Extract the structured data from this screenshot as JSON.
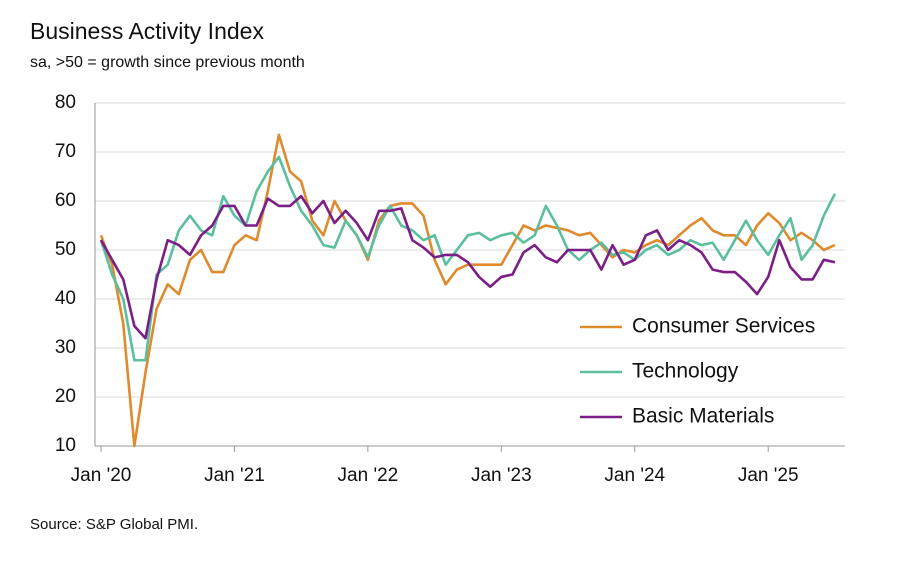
{
  "chart_data": {
    "type": "line",
    "title": "Business Activity Index",
    "subtitle": "sa, >50 = growth since previous month",
    "source": "Source: S&P Global PMI.",
    "categories": [
      "Jan '20",
      null,
      null,
      null,
      null,
      null,
      null,
      null,
      null,
      null,
      null,
      null,
      "Jan '21",
      null,
      null,
      null,
      null,
      null,
      null,
      null,
      null,
      null,
      null,
      null,
      "Jan '22",
      null,
      null,
      null,
      null,
      null,
      null,
      null,
      null,
      null,
      null,
      null,
      "Jan '23",
      null,
      null,
      null,
      null,
      null,
      null,
      null,
      null,
      null,
      null,
      null,
      "Jan '24",
      null,
      null,
      null,
      null,
      null,
      null,
      null,
      null,
      null,
      null,
      null,
      "Jan '25",
      null,
      null,
      null,
      null,
      null,
      null
    ],
    "ylim": [
      10,
      80
    ],
    "yticks": [
      10,
      20,
      30,
      40,
      50,
      60,
      70,
      80
    ],
    "grid": true,
    "legend": "lower right",
    "series": [
      {
        "name": "Consumer Services",
        "color": "#e08a2e",
        "values": [
          53,
          47,
          35,
          10,
          25,
          38,
          43,
          41,
          48,
          50,
          45.5,
          45.5,
          51,
          53,
          52,
          62,
          73.5,
          66,
          64,
          56,
          53,
          60,
          56,
          53,
          48,
          56,
          59,
          59.5,
          59.5,
          57,
          48,
          43,
          46,
          47,
          47,
          47,
          47,
          51,
          55,
          54,
          55,
          54.5,
          54,
          53,
          53.5,
          51,
          48.5,
          50,
          49.5,
          51,
          52,
          51,
          53,
          55,
          56.5,
          54,
          53,
          53,
          51,
          55,
          57.5,
          55.5,
          52,
          53.5,
          52,
          50,
          51
        ]
      },
      {
        "name": "Technology",
        "color": "#5bbf9f",
        "values": [
          52,
          45,
          40,
          27.5,
          27.5,
          45,
          47,
          54,
          57,
          54,
          53,
          61,
          57,
          55,
          62,
          66,
          69,
          63,
          58,
          55,
          51,
          50.5,
          56,
          53,
          48.5,
          55,
          59,
          55,
          54,
          52,
          53,
          47,
          50,
          53,
          53.5,
          52,
          53,
          53.5,
          51.5,
          53,
          59,
          55,
          50,
          48,
          50,
          51.5,
          49,
          49.5,
          48,
          50,
          51,
          49,
          50,
          52,
          51,
          51.5,
          48,
          52,
          56,
          52,
          49,
          53,
          56.5,
          48,
          51,
          57,
          61.5
        ]
      },
      {
        "name": "Basic Materials",
        "color": "#7b1f86",
        "values": [
          52,
          48,
          44,
          34.5,
          32,
          44,
          52,
          51,
          49,
          53,
          55,
          59,
          59,
          55,
          55,
          60.5,
          59,
          59,
          61,
          57.5,
          60,
          55.5,
          58,
          55.5,
          52,
          58,
          58,
          58.5,
          52,
          50.5,
          48.5,
          49,
          49,
          47.5,
          44.5,
          42.5,
          44.5,
          45,
          49.5,
          51,
          48.5,
          47.5,
          50,
          50,
          50,
          46,
          51,
          47,
          48,
          53,
          54,
          50,
          52,
          51,
          49.5,
          46,
          45.5,
          45.5,
          43.5,
          41,
          44.5,
          52,
          46.5,
          44,
          44,
          48,
          47.5
        ]
      }
    ]
  }
}
